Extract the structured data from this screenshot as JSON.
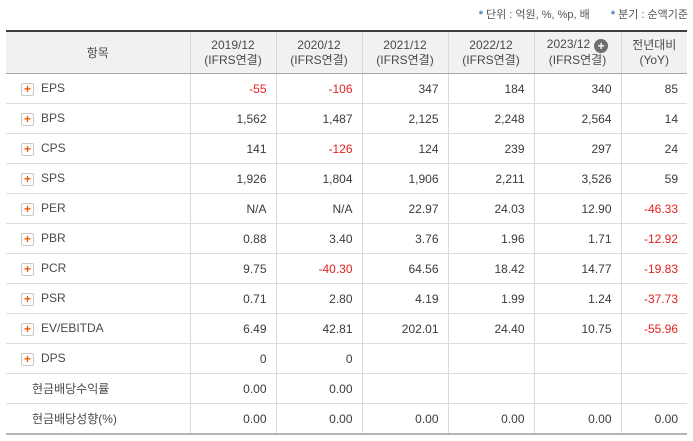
{
  "notes": {
    "unit_star": "*",
    "unit_text": "단위 : 억원, %, %p, 배",
    "basis_star": "*",
    "basis_text": "분기 : 순액기준"
  },
  "table": {
    "item_header": "항목",
    "columns": [
      {
        "line1": "2019/12",
        "line2": "(IFRS연결)",
        "add_icon": false
      },
      {
        "line1": "2020/12",
        "line2": "(IFRS연결)",
        "add_icon": false
      },
      {
        "line1": "2021/12",
        "line2": "(IFRS연결)",
        "add_icon": false
      },
      {
        "line1": "2022/12",
        "line2": "(IFRS연결)",
        "add_icon": false
      },
      {
        "line1": "2023/12",
        "line2": "(IFRS연결)",
        "add_icon": true
      },
      {
        "line1": "전년대비",
        "line2": "(YoY)",
        "add_icon": false
      }
    ],
    "add_icon_glyph": "+",
    "row_plus_glyph": "+",
    "rows": [
      {
        "label": "EPS",
        "icon": true,
        "values": [
          "-55",
          "-106",
          "347",
          "184",
          "340",
          "85"
        ]
      },
      {
        "label": "BPS",
        "icon": true,
        "values": [
          "1,562",
          "1,487",
          "2,125",
          "2,248",
          "2,564",
          "14"
        ]
      },
      {
        "label": "CPS",
        "icon": true,
        "values": [
          "141",
          "-126",
          "124",
          "239",
          "297",
          "24"
        ]
      },
      {
        "label": "SPS",
        "icon": true,
        "values": [
          "1,926",
          "1,804",
          "1,906",
          "2,211",
          "3,526",
          "59"
        ]
      },
      {
        "label": "PER",
        "icon": true,
        "values": [
          "N/A",
          "N/A",
          "22.97",
          "24.03",
          "12.90",
          "-46.33"
        ]
      },
      {
        "label": "PBR",
        "icon": true,
        "values": [
          "0.88",
          "3.40",
          "3.76",
          "1.96",
          "1.71",
          "-12.92"
        ]
      },
      {
        "label": "PCR",
        "icon": true,
        "values": [
          "9.75",
          "-40.30",
          "64.56",
          "18.42",
          "14.77",
          "-19.83"
        ]
      },
      {
        "label": "PSR",
        "icon": true,
        "values": [
          "0.71",
          "2.80",
          "4.19",
          "1.99",
          "1.24",
          "-37.73"
        ]
      },
      {
        "label": "EV/EBITDA",
        "icon": true,
        "values": [
          "6.49",
          "42.81",
          "202.01",
          "24.40",
          "10.75",
          "-55.96"
        ]
      },
      {
        "label": "DPS",
        "icon": true,
        "values": [
          "0",
          "0",
          "",
          "",
          "",
          ""
        ]
      },
      {
        "label": "현금배당수익률",
        "icon": false,
        "values": [
          "0.00",
          "0.00",
          "",
          "",
          "",
          ""
        ]
      },
      {
        "label": "현금배당성향(%)",
        "icon": false,
        "values": [
          "0.00",
          "0.00",
          "0.00",
          "0.00",
          "0.00",
          "0.00"
        ]
      }
    ]
  },
  "colors": {
    "negative_value": "#e32222",
    "plus_icon_orange": "#ee5a0f",
    "note_star_blue": "#4a7ebb",
    "header_bg": "#f1f1f1",
    "header_top_border": "#3f3f3f"
  }
}
